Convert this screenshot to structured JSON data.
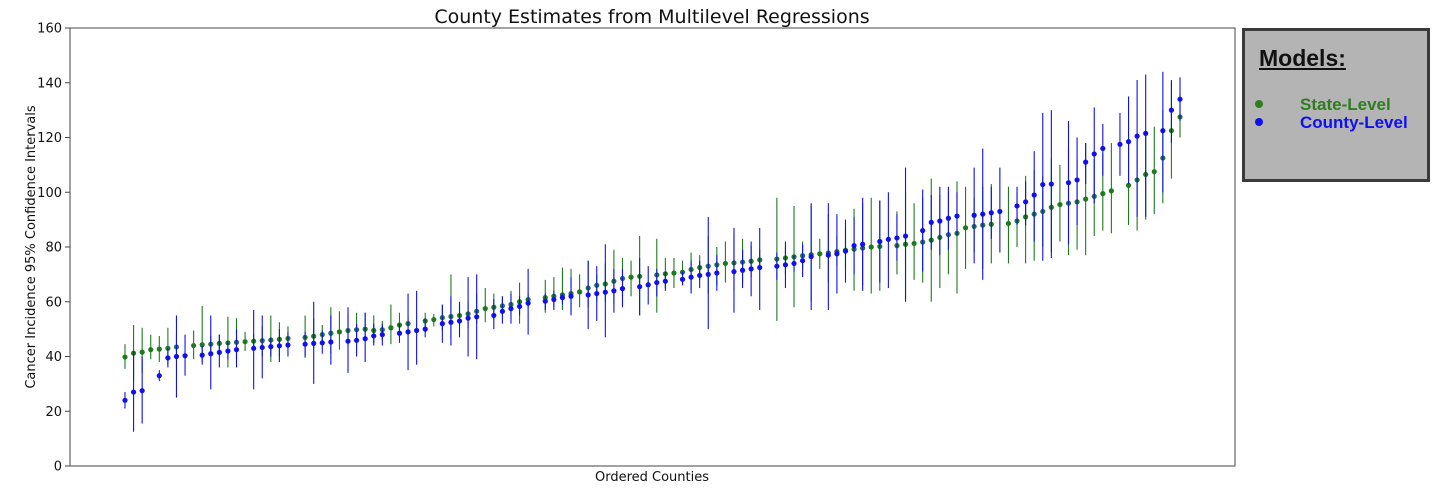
{
  "chart_data": {
    "type": "scatter",
    "title": "County Estimates from Multilevel Regressions",
    "xlabel": "Ordered Counties",
    "ylabel": "Cancer Incidence 95% Confidence Intervals",
    "ylim": [
      0,
      160
    ],
    "yticks": [
      0,
      20,
      40,
      60,
      80,
      100,
      120,
      140,
      160
    ],
    "x_ticks_shown": false,
    "n_counties": 124,
    "series": [
      {
        "name": "State-Level",
        "color": "#1f7a1f",
        "points": [
          [
            39.8,
            35.5,
            44.5
          ],
          [
            41.2,
            31,
            51.5
          ],
          [
            41.6,
            34,
            50.5
          ],
          [
            42.5,
            39,
            48
          ],
          [
            42.7,
            38,
            47.5
          ],
          [
            43,
            37,
            50.5
          ],
          [
            43.5,
            41,
            48
          ],
          [
            44,
            39,
            49.5
          ],
          [
            44.3,
            38,
            58.5
          ],
          [
            44.5,
            41.5,
            47.5
          ],
          [
            44.8,
            41,
            48
          ],
          [
            45,
            36,
            54.5
          ],
          [
            45.2,
            39,
            54
          ],
          [
            45.4,
            42,
            49
          ],
          [
            45.6,
            43,
            48
          ],
          [
            45.8,
            40,
            51
          ],
          [
            46,
            38,
            55
          ],
          [
            46.3,
            40,
            52.5
          ],
          [
            46.6,
            44,
            51
          ],
          [
            47,
            39.5,
            55
          ],
          [
            47.4,
            43,
            54
          ],
          [
            48,
            44.5,
            51.5
          ],
          [
            48.5,
            41,
            58
          ],
          [
            49,
            42.5,
            56.5
          ],
          [
            49.5,
            44,
            56
          ],
          [
            49.8,
            45.5,
            56
          ],
          [
            50,
            46,
            56
          ],
          [
            49.5,
            45,
            55
          ],
          [
            49.8,
            46,
            53
          ],
          [
            50.5,
            44.5,
            59
          ],
          [
            51.5,
            47,
            56
          ],
          [
            52,
            48,
            55
          ],
          [
            53,
            50,
            56
          ],
          [
            53.5,
            51,
            55.5
          ],
          [
            54.2,
            49.5,
            58.5
          ],
          [
            54.6,
            46.5,
            70
          ],
          [
            55,
            51.5,
            59
          ],
          [
            55.6,
            50.5,
            60
          ],
          [
            56.5,
            52,
            63
          ],
          [
            57.5,
            52.5,
            65
          ],
          [
            58,
            53.5,
            63
          ],
          [
            58.5,
            55,
            62
          ],
          [
            59,
            55,
            64
          ],
          [
            60,
            52,
            67
          ],
          [
            60.8,
            58,
            63
          ],
          [
            61.5,
            56,
            68
          ],
          [
            62,
            58,
            69
          ],
          [
            62.5,
            57,
            72.5
          ],
          [
            63,
            56,
            72
          ],
          [
            63.6,
            58,
            70
          ],
          [
            65,
            58,
            75
          ],
          [
            66,
            60,
            70
          ],
          [
            66.5,
            60,
            74
          ],
          [
            67.5,
            59,
            79
          ],
          [
            68.5,
            62,
            76
          ],
          [
            69,
            62,
            75
          ],
          [
            69.3,
            55,
            84
          ],
          [
            69.8,
            56,
            83
          ],
          [
            70.2,
            65,
            76
          ],
          [
            70.5,
            65,
            76
          ],
          [
            70.8,
            66,
            75
          ],
          [
            71.8,
            64,
            78
          ],
          [
            72.5,
            68,
            77
          ],
          [
            73,
            63,
            84
          ],
          [
            73.5,
            66,
            80
          ],
          [
            74,
            67,
            82
          ],
          [
            74.2,
            64,
            85
          ],
          [
            74.5,
            67,
            83
          ],
          [
            74.8,
            69,
            80.5
          ],
          [
            75.3,
            72,
            79
          ],
          [
            75.6,
            53,
            98
          ],
          [
            76,
            70,
            80
          ],
          [
            76.4,
            58,
            95
          ],
          [
            76.8,
            72,
            82
          ],
          [
            77.2,
            60,
            95
          ],
          [
            77.5,
            72,
            83
          ],
          [
            77.8,
            67,
            92
          ],
          [
            78.3,
            73,
            84
          ],
          [
            78.8,
            72,
            87
          ],
          [
            79.2,
            64,
            94
          ],
          [
            79.6,
            66,
            96
          ],
          [
            80,
            63,
            98
          ],
          [
            80.2,
            64,
            97
          ],
          [
            80.5,
            70,
            93
          ],
          [
            81,
            61,
            100
          ],
          [
            81.3,
            68,
            96
          ],
          [
            81.8,
            67,
            98
          ],
          [
            82.5,
            60,
            105
          ],
          [
            83.5,
            65,
            99
          ],
          [
            84.5,
            70,
            100
          ],
          [
            85,
            63,
            104
          ],
          [
            87,
            72,
            102
          ],
          [
            87.5,
            78,
            98
          ],
          [
            88,
            72,
            102
          ],
          [
            88.3,
            74,
            103
          ],
          [
            88.6,
            74,
            102
          ],
          [
            89.5,
            80,
            100
          ],
          [
            91,
            74,
            106
          ],
          [
            92,
            75,
            108
          ],
          [
            93,
            80,
            106
          ],
          [
            94.5,
            78,
            112
          ],
          [
            95.5,
            82,
            110
          ],
          [
            96,
            77,
            116
          ],
          [
            96.5,
            79,
            112
          ],
          [
            97.5,
            77,
            118
          ],
          [
            98.5,
            84,
            112
          ],
          [
            99.5,
            86,
            114
          ],
          [
            100.5,
            85,
            118
          ],
          [
            102.5,
            88,
            118
          ],
          [
            104.5,
            86,
            121
          ],
          [
            106.5,
            90,
            122
          ],
          [
            107.5,
            92,
            124
          ],
          [
            112.5,
            96,
            130
          ],
          [
            122.5,
            105,
            140
          ],
          [
            127.5,
            120,
            136
          ]
        ]
      },
      {
        "name": "County-Level",
        "color": "#1010ee",
        "points": [
          [
            24,
            21,
            27
          ],
          [
            27,
            12.5,
            42
          ],
          [
            27.5,
            15.5,
            40
          ],
          [
            33,
            31,
            35
          ],
          [
            39.5,
            36,
            43
          ],
          [
            40,
            25,
            55
          ],
          [
            40.3,
            33,
            48
          ],
          [
            40.5,
            37,
            44
          ],
          [
            41,
            28,
            55
          ],
          [
            41.5,
            36,
            48
          ],
          [
            42,
            39,
            45.5
          ],
          [
            42.5,
            36,
            50
          ],
          [
            43,
            28,
            57
          ],
          [
            43.3,
            32,
            55
          ],
          [
            43.6,
            40,
            47
          ],
          [
            43.9,
            38,
            50
          ],
          [
            44.2,
            40,
            49
          ],
          [
            44.5,
            40,
            49
          ],
          [
            44.8,
            30,
            60
          ],
          [
            45,
            41,
            49.5
          ],
          [
            45.3,
            37,
            55
          ],
          [
            45.6,
            34,
            58
          ],
          [
            45.9,
            40,
            52
          ],
          [
            46.5,
            38,
            56
          ],
          [
            47.5,
            44,
            52
          ],
          [
            48,
            44,
            52
          ],
          [
            48.5,
            45,
            52
          ],
          [
            49,
            35,
            63
          ],
          [
            49.5,
            37,
            64
          ],
          [
            50,
            47,
            54
          ],
          [
            52,
            45,
            59
          ],
          [
            52.5,
            44,
            62
          ],
          [
            53,
            47,
            60
          ],
          [
            54,
            40,
            69
          ],
          [
            54.5,
            39,
            70
          ],
          [
            55,
            50,
            61
          ],
          [
            56.5,
            52,
            62
          ],
          [
            57.5,
            52,
            63
          ],
          [
            58.3,
            55,
            62
          ],
          [
            59.5,
            48,
            72
          ],
          [
            60.2,
            57,
            63
          ],
          [
            60.8,
            57,
            64
          ],
          [
            61.5,
            59,
            63
          ],
          [
            62,
            55,
            69
          ],
          [
            62.5,
            50,
            75
          ],
          [
            63,
            53,
            73
          ],
          [
            63.5,
            47,
            81
          ],
          [
            64,
            56,
            72
          ],
          [
            64.8,
            58,
            72
          ],
          [
            65.5,
            55,
            76
          ],
          [
            66.2,
            59,
            73
          ],
          [
            67,
            62,
            72
          ],
          [
            67.5,
            64,
            71
          ],
          [
            68.2,
            66,
            71
          ],
          [
            69,
            63,
            75
          ],
          [
            69.6,
            65,
            75
          ],
          [
            70,
            50,
            91
          ],
          [
            70.5,
            64,
            77
          ],
          [
            71,
            56,
            87
          ],
          [
            71.5,
            65,
            79
          ],
          [
            72,
            62,
            82
          ],
          [
            72.5,
            57,
            87
          ],
          [
            73,
            68,
            78
          ],
          [
            73.5,
            65,
            82
          ],
          [
            74,
            71,
            77
          ],
          [
            75,
            69,
            81
          ],
          [
            76.5,
            57,
            96
          ],
          [
            77,
            57,
            96
          ],
          [
            77.5,
            63,
            92
          ],
          [
            78.5,
            67,
            90
          ],
          [
            80.5,
            70,
            91
          ],
          [
            81,
            64,
            98
          ],
          [
            82,
            67,
            97
          ],
          [
            82.8,
            65,
            100
          ],
          [
            83.3,
            75,
            92
          ],
          [
            84,
            60,
            109
          ],
          [
            86,
            71,
            101
          ],
          [
            89,
            79,
            99
          ],
          [
            89.5,
            77,
            102
          ],
          [
            90.5,
            79,
            102
          ],
          [
            91.3,
            84,
            100
          ],
          [
            91.6,
            74,
            109
          ],
          [
            92,
            68,
            116
          ],
          [
            92.5,
            83,
            102
          ],
          [
            93,
            78,
            109
          ],
          [
            95,
            88,
            102
          ],
          [
            96.5,
            88,
            104
          ],
          [
            99,
            82,
            115
          ],
          [
            102.8,
            75,
            129
          ],
          [
            103,
            76,
            130
          ],
          [
            103.5,
            81,
            126
          ],
          [
            104.5,
            88,
            120
          ],
          [
            111,
            103,
            118
          ],
          [
            114,
            96,
            131
          ],
          [
            116,
            106,
            125
          ],
          [
            117.5,
            106,
            129
          ],
          [
            118.5,
            103,
            135
          ],
          [
            120.5,
            91,
            141
          ],
          [
            121.5,
            91,
            143
          ],
          [
            122.5,
            100,
            144
          ],
          [
            130,
            118,
            141
          ],
          [
            134,
            126,
            142
          ]
        ]
      }
    ],
    "legend": {
      "title": "Models:",
      "location": "outside-right-top",
      "entries": [
        {
          "label": "State-Level",
          "color": "#2e7d1f"
        },
        {
          "label": "County-Level",
          "color": "#1010ee"
        }
      ]
    }
  }
}
